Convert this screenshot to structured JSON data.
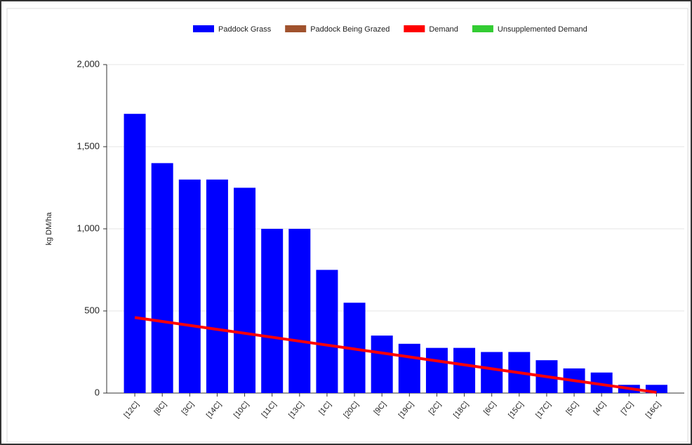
{
  "chart_data": {
    "type": "bar",
    "y_label": "kg DM/ha",
    "categories": [
      "[12C]",
      "[8C]",
      "[3C]",
      "[14C]",
      "[10C]",
      "[11C]",
      "[13C]",
      "[1C]",
      "[20C]",
      "[9C]",
      "[19C]",
      "[2C]",
      "[18C]",
      "[6C]",
      "[15C]",
      "[17C]",
      "[5C]",
      "[4C]",
      "[7C]",
      "[16C]"
    ],
    "series": [
      {
        "name": "Paddock Grass",
        "color": "#0000ff",
        "type": "bar",
        "values": [
          1700,
          1400,
          1300,
          1300,
          1250,
          1000,
          1000,
          750,
          550,
          350,
          300,
          275,
          275,
          250,
          250,
          200,
          150,
          125,
          50,
          50
        ]
      },
      {
        "name": "Paddock Being Grazed",
        "color": "#a0522d",
        "type": "bar",
        "values": [
          null,
          null,
          null,
          null,
          null,
          null,
          null,
          null,
          null,
          null,
          null,
          null,
          null,
          null,
          null,
          null,
          null,
          null,
          null,
          null
        ]
      },
      {
        "name": "Demand",
        "color": "#ff0000",
        "type": "line",
        "values": [
          460,
          436,
          412,
          388,
          364,
          340,
          316,
          292,
          268,
          244,
          220,
          196,
          172,
          148,
          124,
          100,
          76,
          52,
          28,
          4
        ]
      },
      {
        "name": "Unsupplemented Demand",
        "color": "#33cc33",
        "type": "line",
        "values": [
          null,
          null,
          null,
          null,
          null,
          null,
          null,
          null,
          null,
          null,
          null,
          null,
          null,
          null,
          null,
          null,
          null,
          null,
          null,
          null
        ]
      }
    ],
    "ylim": [
      0,
      2000
    ],
    "yticks": [
      0,
      500,
      {
        "value": 1000,
        "label": "1,000"
      },
      {
        "value": 1500,
        "label": "1,500"
      },
      {
        "value": 2000,
        "label": "2,000"
      }
    ],
    "grid": true,
    "legend": "top"
  }
}
